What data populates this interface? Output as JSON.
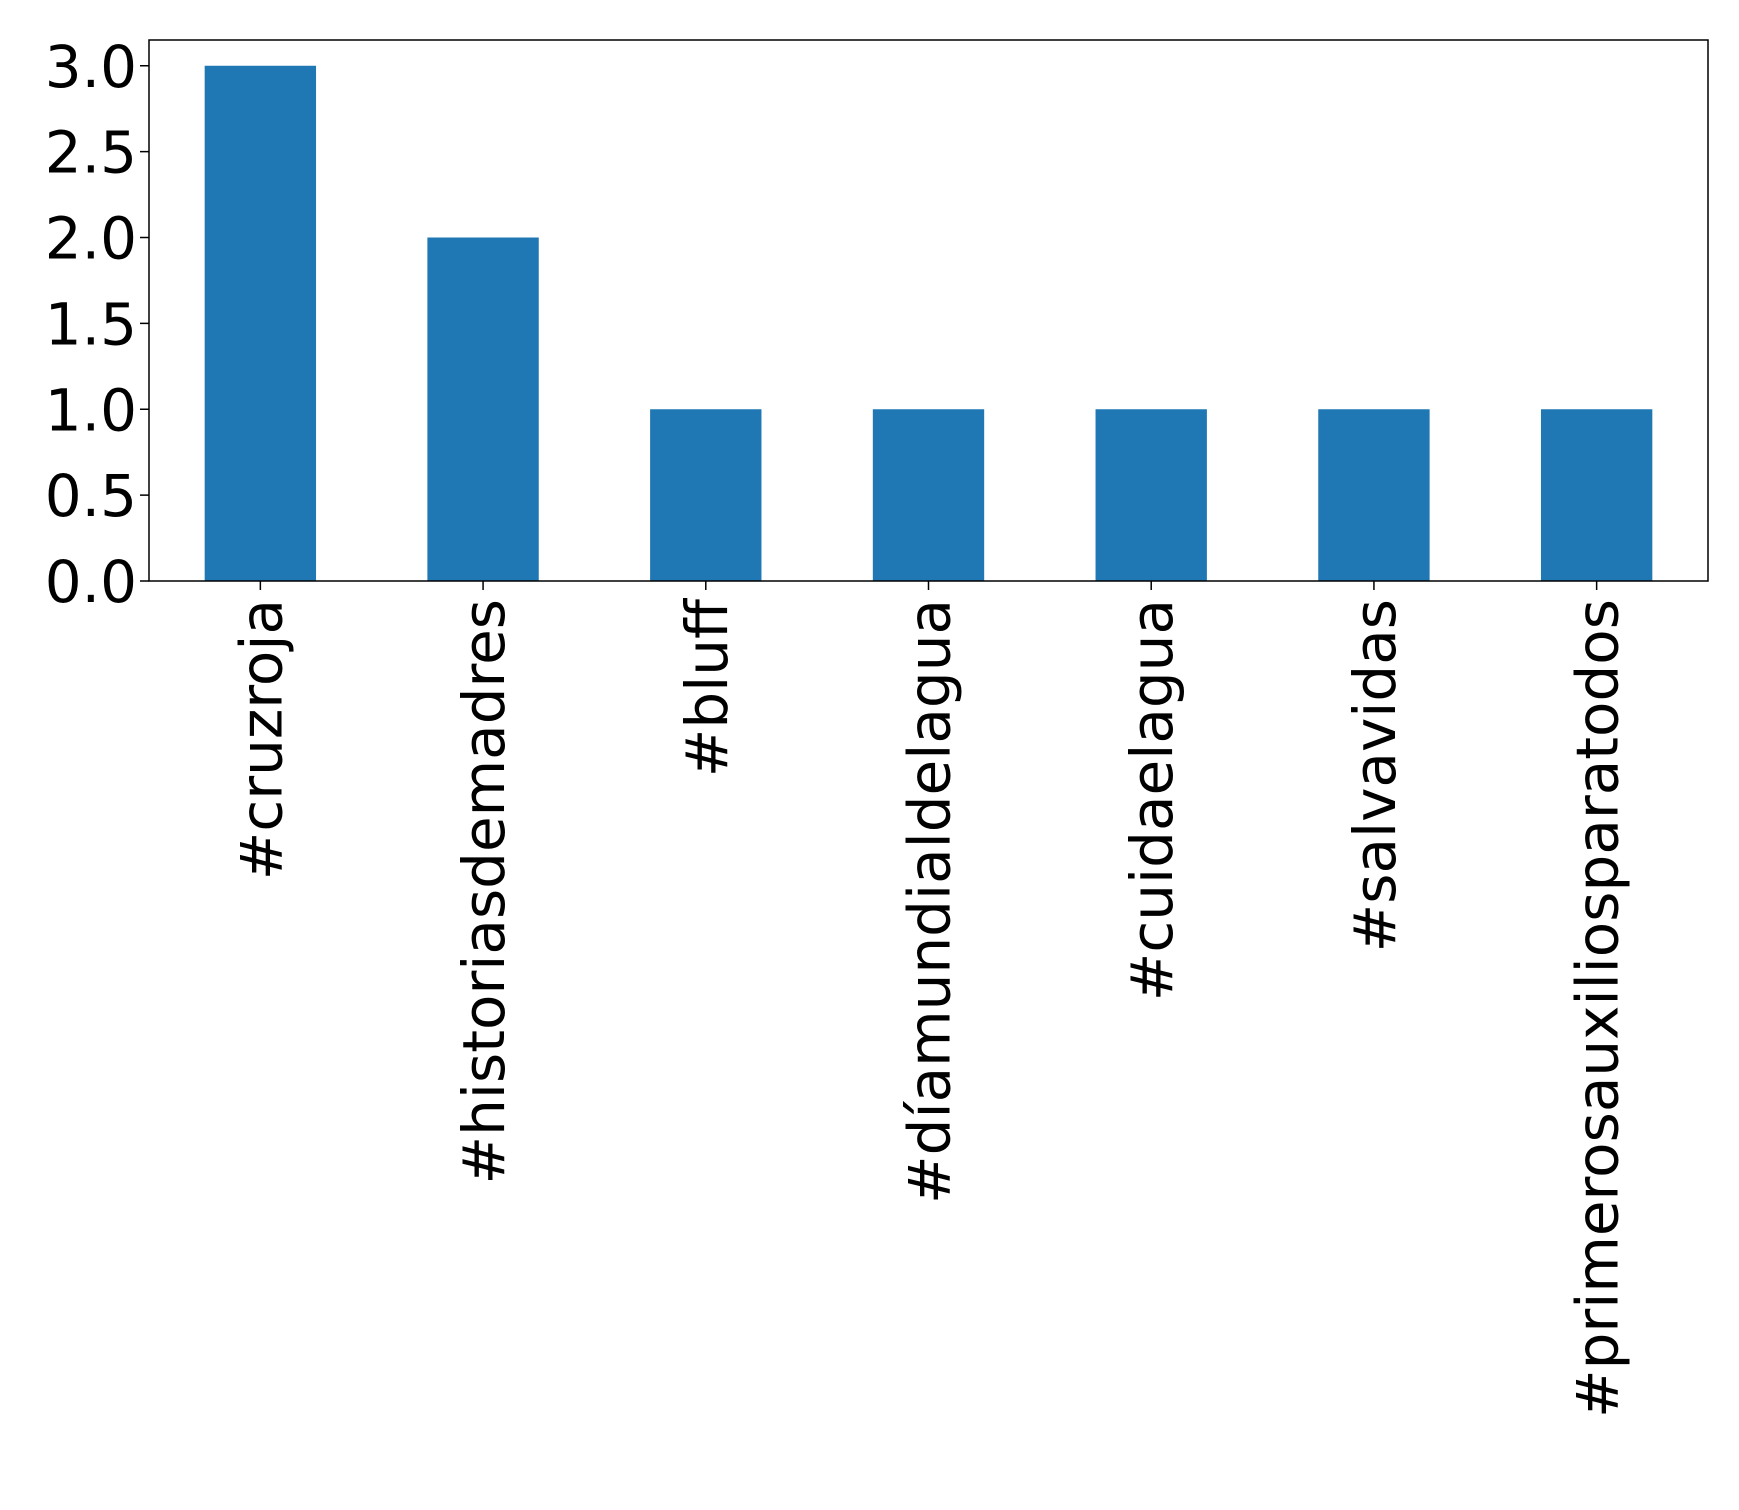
{
  "chart_data": {
    "type": "bar",
    "categories": [
      "#cruzroja",
      "#historiasdemadres",
      "#bluff",
      "#díamundialdelagua",
      "#cuidaelagua",
      "#salvavidas",
      "#primerosauxiliosparatodos"
    ],
    "values": [
      3,
      2,
      1,
      1,
      1,
      1,
      1
    ],
    "color": "#1f77b4",
    "ylim": [
      0,
      3.15
    ],
    "yticks": [
      {
        "value": 0,
        "label": "0.0"
      },
      {
        "value": 0.5,
        "label": "0.5"
      },
      {
        "value": 1,
        "label": "1.0"
      },
      {
        "value": 1.5,
        "label": "1.5"
      },
      {
        "value": 2,
        "label": "2.0"
      },
      {
        "value": 2.5,
        "label": "2.5"
      },
      {
        "value": 3,
        "label": "3.0"
      }
    ],
    "grid": false
  }
}
